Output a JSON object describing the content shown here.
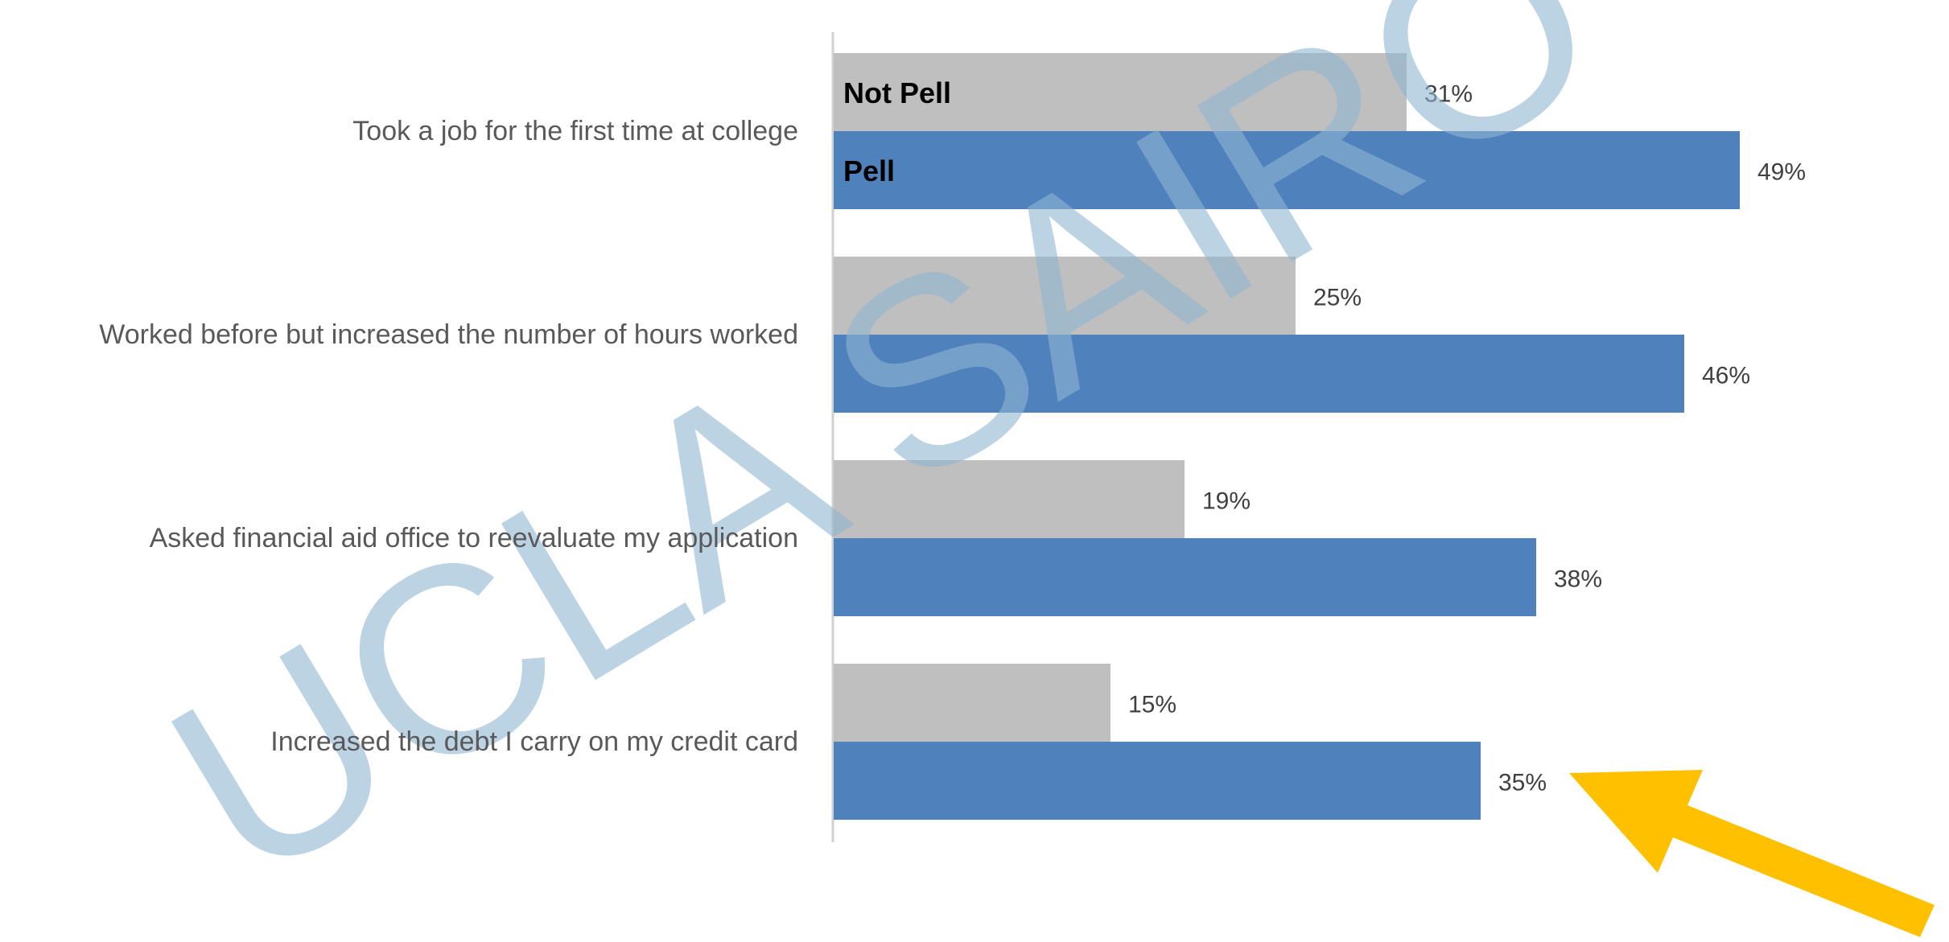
{
  "chart_data": {
    "type": "bar",
    "orientation": "horizontal",
    "categories": [
      "Took a job for the first time at college",
      "Worked before but increased the number of hours worked",
      "Asked financial aid office to reevaluate my application",
      "Increased the debt I carry on my credit card"
    ],
    "series": [
      {
        "name": "Not Pell",
        "color": "#bfbfbf",
        "values": [
          31,
          25,
          19,
          15
        ],
        "value_labels": [
          "31%",
          "25%",
          "19%",
          "15%"
        ]
      },
      {
        "name": "Pell",
        "color": "#4f81bd",
        "values": [
          49,
          46,
          38,
          35
        ],
        "value_labels": [
          "49%",
          "46%",
          "38%",
          "35%"
        ]
      }
    ],
    "watermark": "UCLA SAIRO"
  }
}
